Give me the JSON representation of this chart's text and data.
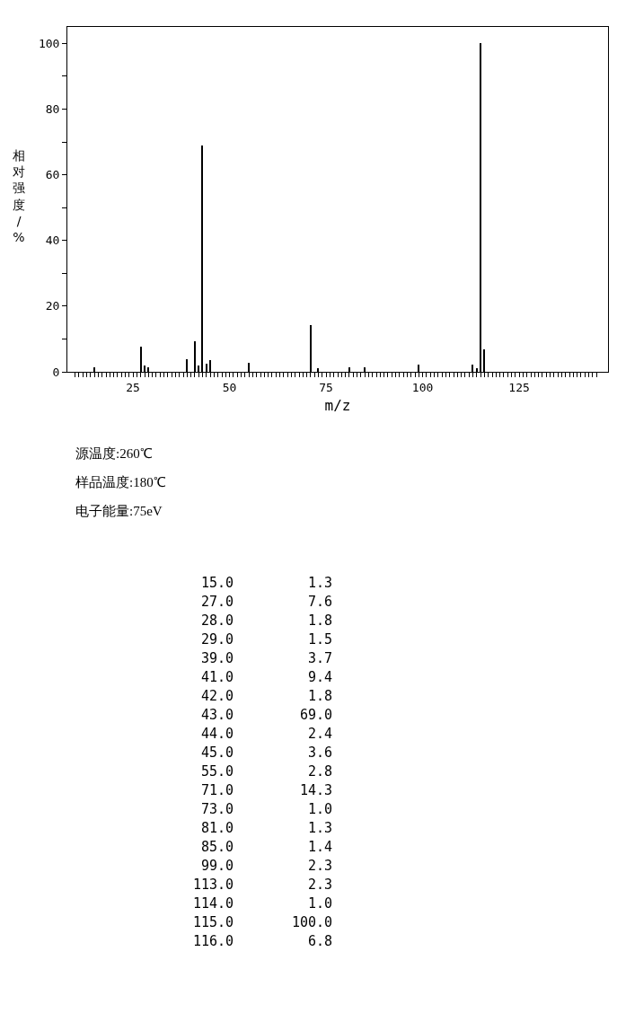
{
  "chart_data": {
    "type": "bar",
    "xlabel": "m/z",
    "ylabel": "相对强度/%",
    "x": [
      15,
      27,
      28,
      29,
      39,
      41,
      42,
      43,
      44,
      45,
      55,
      71,
      73,
      81,
      85,
      99,
      113,
      114,
      115,
      116
    ],
    "values": [
      1.3,
      7.6,
      1.8,
      1.5,
      3.7,
      9.4,
      1.8,
      69.0,
      2.4,
      3.6,
      2.8,
      14.3,
      1.0,
      1.3,
      1.4,
      2.3,
      2.3,
      1.0,
      100.0,
      6.8
    ],
    "color": "#000000",
    "xlim": [
      8,
      148
    ],
    "xticks": [
      {
        "value": 10,
        "label": null
      },
      {
        "value": 11,
        "label": null
      },
      {
        "value": 12,
        "label": null
      },
      {
        "value": 13,
        "label": null
      },
      {
        "value": 14,
        "label": null
      },
      {
        "value": 15,
        "label": null
      },
      {
        "value": 16,
        "label": null
      },
      {
        "value": 17,
        "label": null
      },
      {
        "value": 18,
        "label": null
      },
      {
        "value": 19,
        "label": null
      },
      {
        "value": 20,
        "label": null
      },
      {
        "value": 21,
        "label": null
      },
      {
        "value": 22,
        "label": null
      },
      {
        "value": 23,
        "label": null
      },
      {
        "value": 24,
        "label": null
      },
      25,
      {
        "value": 26,
        "label": null
      },
      {
        "value": 27,
        "label": null
      },
      {
        "value": 28,
        "label": null
      },
      {
        "value": 29,
        "label": null
      },
      {
        "value": 30,
        "label": null
      },
      {
        "value": 31,
        "label": null
      },
      {
        "value": 32,
        "label": null
      },
      {
        "value": 33,
        "label": null
      },
      {
        "value": 34,
        "label": null
      },
      {
        "value": 35,
        "label": null
      },
      {
        "value": 36,
        "label": null
      },
      {
        "value": 37,
        "label": null
      },
      {
        "value": 38,
        "label": null
      },
      {
        "value": 39,
        "label": null
      },
      {
        "value": 40,
        "label": null
      },
      {
        "value": 41,
        "label": null
      },
      {
        "value": 42,
        "label": null
      },
      {
        "value": 43,
        "label": null
      },
      {
        "value": 44,
        "label": null
      },
      {
        "value": 45,
        "label": null
      },
      {
        "value": 46,
        "label": null
      },
      {
        "value": 47,
        "label": null
      },
      {
        "value": 48,
        "label": null
      },
      {
        "value": 49,
        "label": null
      },
      50,
      {
        "value": 51,
        "label": null
      },
      {
        "value": 52,
        "label": null
      },
      {
        "value": 53,
        "label": null
      },
      {
        "value": 54,
        "label": null
      },
      {
        "value": 55,
        "label": null
      },
      {
        "value": 56,
        "label": null
      },
      {
        "value": 57,
        "label": null
      },
      {
        "value": 58,
        "label": null
      },
      {
        "value": 59,
        "label": null
      },
      {
        "value": 60,
        "label": null
      },
      {
        "value": 61,
        "label": null
      },
      {
        "value": 62,
        "label": null
      },
      {
        "value": 63,
        "label": null
      },
      {
        "value": 64,
        "label": null
      },
      {
        "value": 65,
        "label": null
      },
      {
        "value": 66,
        "label": null
      },
      {
        "value": 67,
        "label": null
      },
      {
        "value": 68,
        "label": null
      },
      {
        "value": 69,
        "label": null
      },
      {
        "value": 70,
        "label": null
      },
      {
        "value": 71,
        "label": null
      },
      {
        "value": 72,
        "label": null
      },
      {
        "value": 73,
        "label": null
      },
      {
        "value": 74,
        "label": null
      },
      75,
      {
        "value": 76,
        "label": null
      },
      {
        "value": 77,
        "label": null
      },
      {
        "value": 78,
        "label": null
      },
      {
        "value": 79,
        "label": null
      },
      {
        "value": 80,
        "label": null
      },
      {
        "value": 81,
        "label": null
      },
      {
        "value": 82,
        "label": null
      },
      {
        "value": 83,
        "label": null
      },
      {
        "value": 84,
        "label": null
      },
      {
        "value": 85,
        "label": null
      },
      {
        "value": 86,
        "label": null
      },
      {
        "value": 87,
        "label": null
      },
      {
        "value": 88,
        "label": null
      },
      {
        "value": 89,
        "label": null
      },
      {
        "value": 90,
        "label": null
      },
      {
        "value": 91,
        "label": null
      },
      {
        "value": 92,
        "label": null
      },
      {
        "value": 93,
        "label": null
      },
      {
        "value": 94,
        "label": null
      },
      {
        "value": 95,
        "label": null
      },
      {
        "value": 96,
        "label": null
      },
      {
        "value": 97,
        "label": null
      },
      {
        "value": 98,
        "label": null
      },
      {
        "value": 99,
        "label": null
      },
      100,
      {
        "value": 101,
        "label": null
      },
      {
        "value": 102,
        "label": null
      },
      {
        "value": 103,
        "label": null
      },
      {
        "value": 104,
        "label": null
      },
      {
        "value": 105,
        "label": null
      },
      {
        "value": 106,
        "label": null
      },
      {
        "value": 107,
        "label": null
      },
      {
        "value": 108,
        "label": null
      },
      {
        "value": 109,
        "label": null
      },
      {
        "value": 110,
        "label": null
      },
      {
        "value": 111,
        "label": null
      },
      {
        "value": 112,
        "label": null
      },
      {
        "value": 113,
        "label": null
      },
      {
        "value": 114,
        "label": null
      },
      {
        "value": 115,
        "label": null
      },
      {
        "value": 116,
        "label": null
      },
      {
        "value": 117,
        "label": null
      },
      {
        "value": 118,
        "label": null
      },
      {
        "value": 119,
        "label": null
      },
      {
        "value": 120,
        "label": null
      },
      {
        "value": 121,
        "label": null
      },
      {
        "value": 122,
        "label": null
      },
      {
        "value": 123,
        "label": null
      },
      {
        "value": 124,
        "label": null
      },
      125,
      {
        "value": 126,
        "label": null
      },
      {
        "value": 127,
        "label": null
      },
      {
        "value": 128,
        "label": null
      },
      {
        "value": 129,
        "label": null
      },
      {
        "value": 130,
        "label": null
      },
      {
        "value": 131,
        "label": null
      },
      {
        "value": 132,
        "label": null
      },
      {
        "value": 133,
        "label": null
      },
      {
        "value": 134,
        "label": null
      },
      {
        "value": 135,
        "label": null
      },
      {
        "value": 136,
        "label": null
      },
      {
        "value": 137,
        "label": null
      },
      {
        "value": 138,
        "label": null
      },
      {
        "value": 139,
        "label": null
      },
      {
        "value": 140,
        "label": null
      },
      {
        "value": 141,
        "label": null
      },
      {
        "value": 142,
        "label": null
      },
      {
        "value": 143,
        "label": null
      },
      {
        "value": 144,
        "label": null
      },
      {
        "value": 145,
        "label": null
      }
    ],
    "ylim": [
      0,
      105
    ],
    "yticks": [
      0,
      {
        "value": 10,
        "label": null
      },
      20,
      {
        "value": 30,
        "label": null
      },
      40,
      {
        "value": 50,
        "label": null
      },
      60,
      {
        "value": 70,
        "label": null
      },
      80,
      {
        "value": 90,
        "label": null
      },
      100
    ],
    "annotations": [
      "源温度:260℃",
      "样品温度:180℃",
      "电子能量:75eV",
      "15.0",
      "1.3",
      "27.0",
      "7.6",
      "28.0",
      "1.8",
      "29.0",
      "1.5",
      "39.0",
      "3.7",
      "41.0",
      "9.4",
      "42.0",
      "1.8",
      "43.0",
      "69.0",
      "44.0",
      "2.4",
      "45.0",
      "3.6",
      "55.0",
      "2.8",
      "71.0",
      "14.3",
      "73.0",
      "1.0",
      "81.0",
      "1.3",
      "85.0",
      "1.4",
      "99.0",
      "2.3",
      "113.0",
      "2.3",
      "114.0",
      "1.0",
      "115.0",
      "100.0",
      "116.0",
      "6.8"
    ]
  }
}
